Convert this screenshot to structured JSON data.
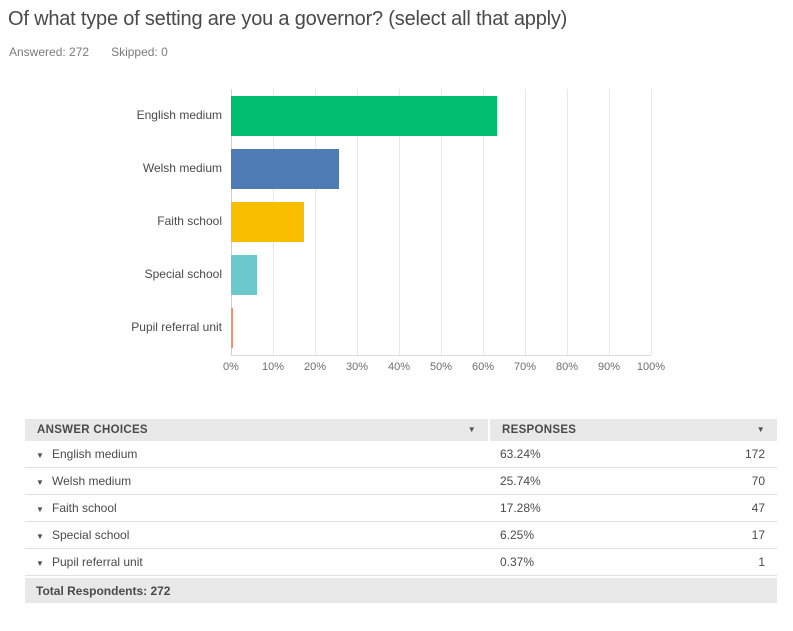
{
  "header": {
    "title": "Of what type of setting are you a governor? (select all that apply)",
    "answered": "Answered: 272",
    "skipped": "Skipped: 0"
  },
  "chart_data": {
    "type": "bar",
    "orientation": "horizontal",
    "title": "",
    "xlabel": "",
    "ylabel": "",
    "categories": [
      "English medium",
      "Welsh medium",
      "Faith school",
      "Special school",
      "Pupil referral unit"
    ],
    "values": [
      63.24,
      25.74,
      17.28,
      6.25,
      0.37
    ],
    "bar_colors": [
      "#00bf6f",
      "#507cb5",
      "#f9be00",
      "#6bc8cd",
      "#f98e71"
    ],
    "xlim": [
      0,
      100
    ],
    "x_tick_labels": [
      "0%",
      "10%",
      "20%",
      "30%",
      "40%",
      "50%",
      "60%",
      "70%",
      "80%",
      "90%",
      "100%"
    ],
    "grid": true,
    "legend": "none"
  },
  "table": {
    "columns": [
      {
        "label": "ANSWER CHOICES"
      },
      {
        "label": "RESPONSES"
      }
    ],
    "rows": [
      {
        "choice": "English medium",
        "percent": "63.24%",
        "count": "172"
      },
      {
        "choice": "Welsh medium",
        "percent": "25.74%",
        "count": "70"
      },
      {
        "choice": "Faith school",
        "percent": "17.28%",
        "count": "47"
      },
      {
        "choice": "Special school",
        "percent": "6.25%",
        "count": "17"
      },
      {
        "choice": "Pupil referral unit",
        "percent": "0.37%",
        "count": "1"
      }
    ],
    "footer": "Total Respondents: 272",
    "sort_icon": "▼",
    "expand_icon": "▼"
  },
  "colors": {
    "gridline": "#e7e7e7",
    "axis_line": "#cfcfcf",
    "header_bg": "#e8e8e8",
    "row_border": "#e0e0e0",
    "title_text": "#494949",
    "meta_text": "#7b7b7b"
  }
}
